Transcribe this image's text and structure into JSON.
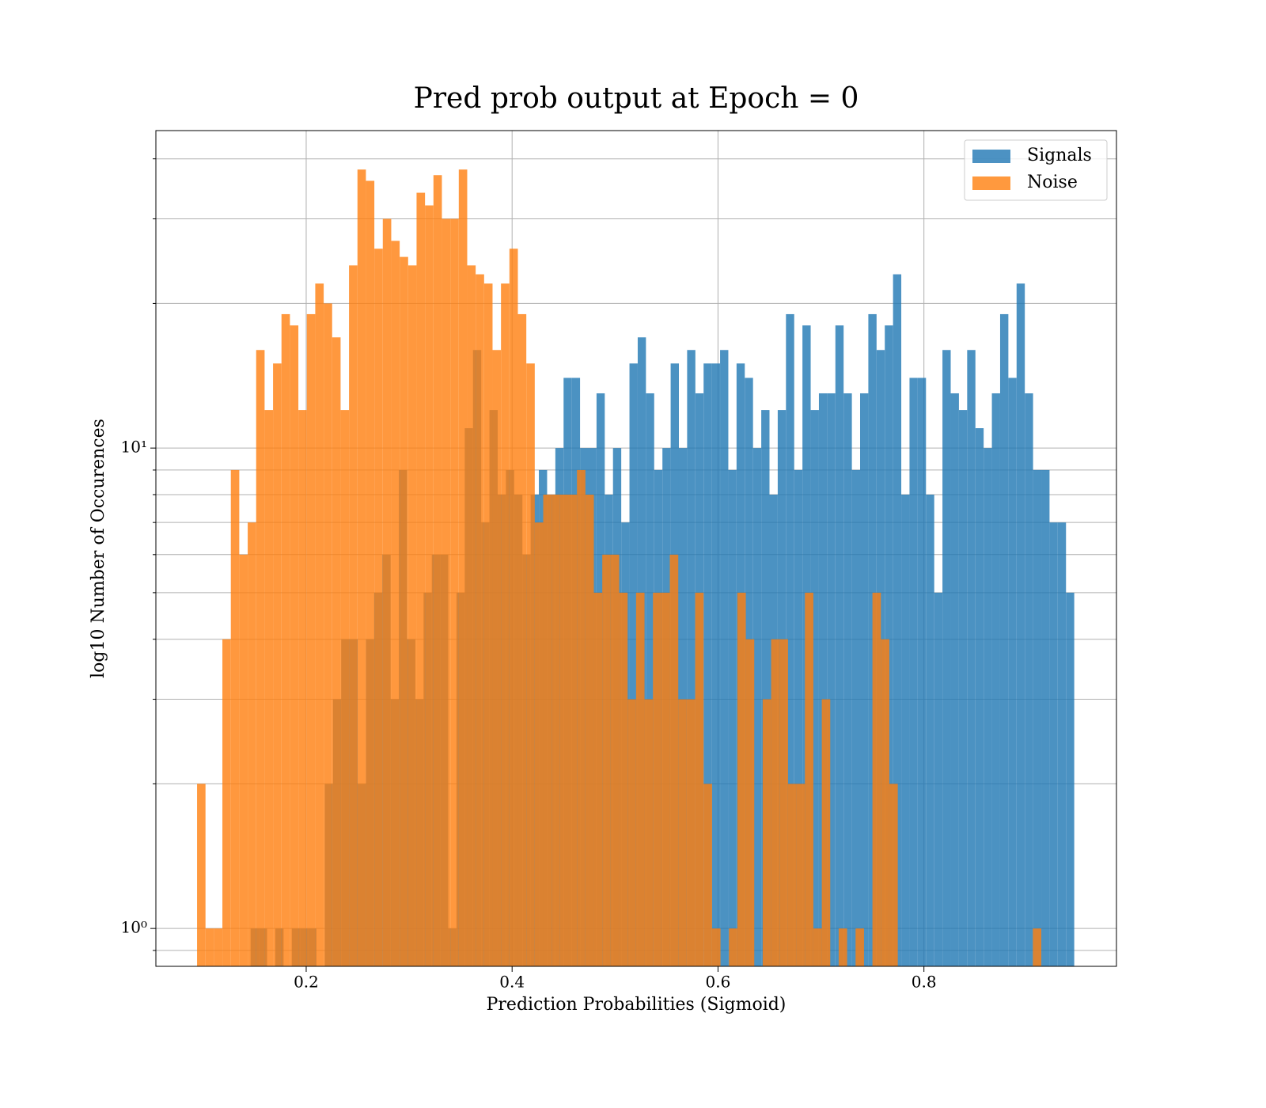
{
  "chart_data": {
    "type": "histogram",
    "title": "Pred prob output at Epoch = 0",
    "x_label": "Prediction Probabilities (Sigmoid)",
    "y_label": "log10 Number of Occurences",
    "xlim": [
      0.054,
      0.987
    ],
    "ylim": [
      0.834,
      45.8
    ],
    "y_scale": "log",
    "xticks": [
      0.2,
      0.4,
      0.6,
      0.8
    ],
    "yticks": [
      {
        "value": 1,
        "label": "10⁰"
      },
      {
        "value": 10,
        "label": "10¹"
      }
    ],
    "yticks_minor": [
      0.9,
      2,
      3,
      4,
      5,
      6,
      7,
      8,
      9,
      20,
      30,
      40
    ],
    "grid": true,
    "legend": "upper right",
    "alpha": 0.8,
    "series": [
      {
        "name": "Signals",
        "color": "#1f77b4",
        "bins": [
          0.146,
          0.154,
          0.162,
          0.17,
          0.178,
          0.186,
          0.194,
          0.202,
          0.21,
          0.218,
          0.226,
          0.234,
          0.242,
          0.25,
          0.258,
          0.266,
          0.274,
          0.282,
          0.29,
          0.298,
          0.306,
          0.314,
          0.322,
          0.33,
          0.338,
          0.346,
          0.354,
          0.362,
          0.37,
          0.378,
          0.386,
          0.394,
          0.402,
          0.41,
          0.418,
          0.426,
          0.434,
          0.442,
          0.45,
          0.458,
          0.466,
          0.474,
          0.482,
          0.49,
          0.498,
          0.506,
          0.514,
          0.522,
          0.53,
          0.538,
          0.546,
          0.554,
          0.562,
          0.57,
          0.578,
          0.586,
          0.594,
          0.602,
          0.61,
          0.618,
          0.626,
          0.634,
          0.642,
          0.65,
          0.658,
          0.666,
          0.674,
          0.682,
          0.69,
          0.698,
          0.706,
          0.714,
          0.722,
          0.73,
          0.738,
          0.746,
          0.754,
          0.762,
          0.77,
          0.778,
          0.786,
          0.794,
          0.802,
          0.81,
          0.818,
          0.826,
          0.834,
          0.842,
          0.85,
          0.858,
          0.866,
          0.874,
          0.882,
          0.89,
          0.898,
          0.906,
          0.914,
          0.922,
          0.93,
          0.938,
          0.946
        ],
        "values": [
          1,
          1,
          0,
          1,
          0,
          1,
          1,
          1,
          0,
          2,
          3,
          4,
          4,
          2,
          4,
          5,
          6,
          3,
          9,
          4,
          3,
          5,
          6,
          6,
          1,
          5,
          11,
          16,
          7,
          12,
          8,
          9,
          8,
          6,
          8,
          9,
          8,
          10,
          14,
          14,
          10,
          10,
          13,
          8,
          10,
          7,
          15,
          17,
          13,
          9,
          10,
          15,
          10,
          16,
          13,
          15,
          15,
          16,
          9,
          15,
          14,
          10,
          12,
          8,
          12,
          19,
          9,
          18,
          12,
          13,
          13,
          18,
          13,
          9,
          13,
          19,
          16,
          18,
          23,
          8,
          14,
          14,
          8,
          5,
          16,
          13,
          12,
          16,
          11,
          10,
          13,
          19,
          14,
          22,
          13,
          9,
          9,
          7,
          7,
          5
        ]
      },
      {
        "name": "Noise",
        "color": "#ff7f0e",
        "bins": [
          0.094,
          0.1022,
          0.1104,
          0.1186,
          0.1268,
          0.135,
          0.1432,
          0.1514,
          0.1596,
          0.1678,
          0.176,
          0.1842,
          0.1924,
          0.2006,
          0.2088,
          0.217,
          0.2252,
          0.2334,
          0.2416,
          0.2498,
          0.258,
          0.2662,
          0.2744,
          0.2826,
          0.2908,
          0.299,
          0.3072,
          0.3154,
          0.3236,
          0.3318,
          0.34,
          0.3482,
          0.3564,
          0.3646,
          0.3728,
          0.381,
          0.3892,
          0.3974,
          0.4056,
          0.4138,
          0.422,
          0.4302,
          0.4384,
          0.4466,
          0.4548,
          0.463,
          0.4712,
          0.4794,
          0.4876,
          0.4958,
          0.504,
          0.5122,
          0.5204,
          0.5286,
          0.5368,
          0.545,
          0.5532,
          0.5614,
          0.5696,
          0.5778,
          0.586,
          0.5942,
          0.6024,
          0.6106,
          0.6188,
          0.627,
          0.6352,
          0.6434,
          0.6516,
          0.6598,
          0.668,
          0.6762,
          0.6844,
          0.6926,
          0.7008,
          0.709,
          0.7172,
          0.7254,
          0.7336,
          0.7418,
          0.75,
          0.7582,
          0.7664,
          0.7746,
          0.7828,
          0.791,
          0.7992,
          0.8074,
          0.8156,
          0.8238,
          0.832,
          0.8402,
          0.8484,
          0.8566,
          0.8648,
          0.873,
          0.8812,
          0.8894,
          0.8976,
          0.9058,
          0.914
        ],
        "values": [
          2,
          1,
          1,
          4,
          9,
          6,
          7,
          16,
          12,
          15,
          19,
          18,
          12,
          19,
          22,
          20,
          17,
          12,
          24,
          38,
          36,
          26,
          30,
          27,
          25,
          24,
          34,
          32,
          37,
          30,
          30,
          38,
          24,
          23,
          22,
          16,
          22,
          26,
          19,
          15,
          7,
          8,
          8,
          8,
          8,
          9,
          8,
          5,
          6,
          6,
          5,
          3,
          5,
          3,
          5,
          5,
          6,
          3,
          3,
          5,
          2,
          1,
          0,
          1,
          5,
          4,
          0,
          3,
          4,
          4,
          2,
          2,
          5,
          1,
          3,
          0,
          1,
          0,
          1,
          0,
          5,
          4,
          2,
          0,
          0,
          0,
          0,
          0,
          0,
          0,
          0,
          0,
          0,
          0,
          0,
          0,
          0,
          0,
          0,
          1
        ]
      }
    ]
  }
}
